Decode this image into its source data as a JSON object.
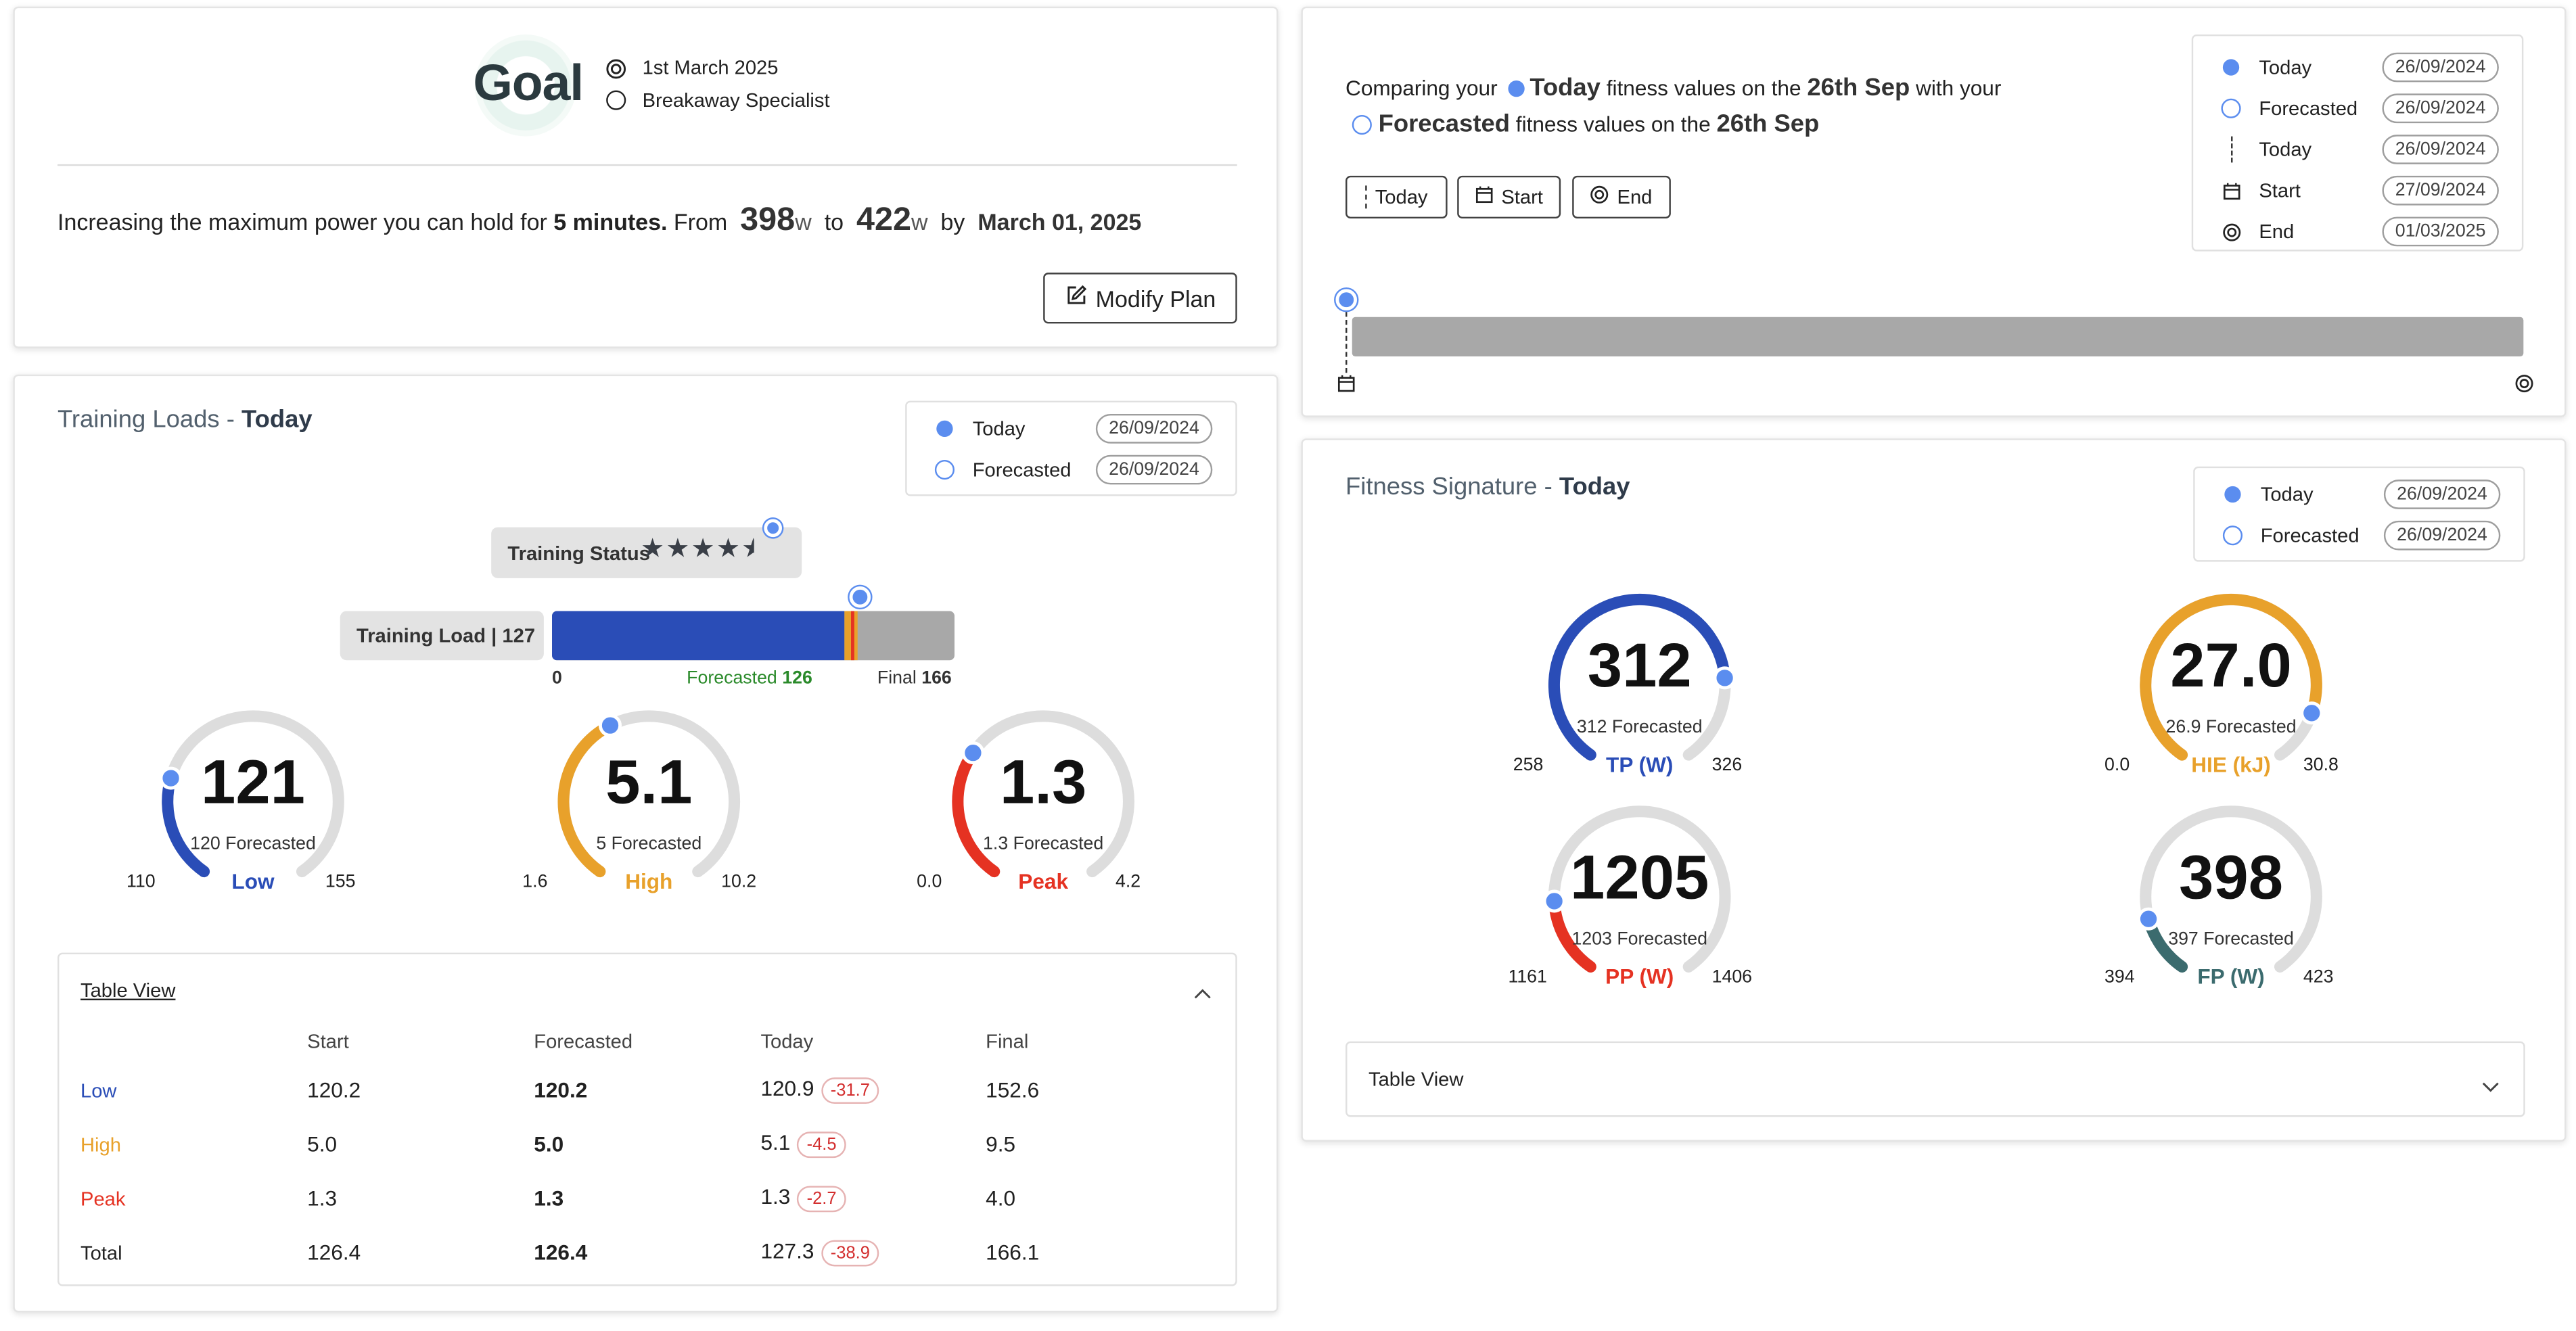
{
  "colors": {
    "low": "#2a4db7",
    "high": "#e8a12b",
    "peak": "#e53222",
    "fp": "#3b6b6e",
    "marker": "#5b8def",
    "track": "#dddddd",
    "forecast": "#2a8a2a"
  },
  "goal": {
    "label": "Goal",
    "date": "1st March 2025",
    "profile": "Breakaway Specialist",
    "desc_prefix": "Increasing the maximum power you can hold for",
    "duration": "5 minutes.",
    "from_label": "From",
    "from_value": "398",
    "from_unit": "w",
    "to_label": "to",
    "to_value": "422",
    "to_unit": "w",
    "by_label": "by",
    "by_date": "March 01, 2025",
    "modify_button": "Modify Plan"
  },
  "timeline": {
    "text1": "Comparing your",
    "today_label": "Today",
    "text2": "fitness values on the",
    "date_bold": "26th Sep",
    "text3": "with your",
    "forecasted_label": "Forecasted",
    "text4": "fitness values on the",
    "date_bold2": "26th Sep",
    "buttons": [
      "Today",
      "Start",
      "End"
    ],
    "progress": 0.0,
    "legend": [
      {
        "icon": "dot",
        "label": "Today",
        "date": "26/09/2024"
      },
      {
        "icon": "ring",
        "label": "Forecasted",
        "date": "26/09/2024"
      },
      {
        "icon": "dash",
        "label": "Today",
        "date": "26/09/2024"
      },
      {
        "icon": "calendar",
        "label": "Start",
        "date": "27/09/2024"
      },
      {
        "icon": "target",
        "label": "End",
        "date": "01/03/2025"
      }
    ]
  },
  "training": {
    "title": "Training Loads - ",
    "title_bold": "Today",
    "legend": [
      {
        "label": "Today",
        "date": "26/09/2024"
      },
      {
        "label": "Forecasted",
        "date": "26/09/2024"
      }
    ],
    "status_label": "Training Status",
    "stars": 4.5,
    "load_label": "Training Load | 127",
    "load": {
      "min": 0,
      "max": 166,
      "today": 127,
      "forecasted": 126
    },
    "load_min_label": "0",
    "forecasted_text": "Forecasted",
    "forecasted_value": "126",
    "final_text": "Final",
    "final_value": "166",
    "gauges": [
      {
        "value": "121",
        "sub": "120 Forecasted",
        "min": "110",
        "max": "155",
        "name": "Low",
        "color": "low",
        "v": 121,
        "lo": 110,
        "hi": 155
      },
      {
        "value": "5.1",
        "sub": "5 Forecasted",
        "min": "1.6",
        "max": "10.2",
        "name": "High",
        "color": "high",
        "v": 5.1,
        "lo": 1.6,
        "hi": 10.2
      },
      {
        "value": "1.3",
        "sub": "1.3 Forecasted",
        "min": "0.0",
        "max": "4.2",
        "name": "Peak",
        "color": "peak",
        "v": 1.3,
        "lo": 0,
        "hi": 4.2
      }
    ],
    "table": {
      "title": "Table View",
      "headers": [
        "",
        "Start",
        "Forecasted",
        "Today",
        "Final"
      ],
      "rows": [
        {
          "name": "Low",
          "start": "120.2",
          "forecasted": "120.2",
          "today": "120.9",
          "delta": "-31.7",
          "final": "152.6"
        },
        {
          "name": "High",
          "start": "5.0",
          "forecasted": "5.0",
          "today": "5.1",
          "delta": "-4.5",
          "final": "9.5"
        },
        {
          "name": "Peak",
          "start": "1.3",
          "forecasted": "1.3",
          "today": "1.3",
          "delta": "-2.7",
          "final": "4.0"
        },
        {
          "name": "Total",
          "start": "126.4",
          "forecasted": "126.4",
          "today": "127.3",
          "delta": "-38.9",
          "final": "166.1"
        }
      ]
    }
  },
  "fitness": {
    "title": "Fitness Signature - ",
    "title_bold": "Today",
    "legend": [
      {
        "label": "Today",
        "date": "26/09/2024"
      },
      {
        "label": "Forecasted",
        "date": "26/09/2024"
      }
    ],
    "gauges": [
      {
        "value": "312",
        "sub": "312 Forecasted",
        "min": "258",
        "max": "326",
        "name": "TP (W)",
        "color": "low",
        "v": 312,
        "lo": 258,
        "hi": 326
      },
      {
        "value": "27.0",
        "sub": "26.9 Forecasted",
        "min": "0.0",
        "max": "30.8",
        "name": "HIE (kJ)",
        "color": "high",
        "v": 27.0,
        "lo": 0,
        "hi": 30.8
      },
      {
        "value": "1205",
        "sub": "1203 Forecasted",
        "min": "1161",
        "max": "1406",
        "name": "PP (W)",
        "color": "peak",
        "v": 1205,
        "lo": 1161,
        "hi": 1406
      },
      {
        "value": "398",
        "sub": "397 Forecasted",
        "min": "394",
        "max": "423",
        "name": "FP (W)",
        "color": "fp",
        "v": 398,
        "lo": 394,
        "hi": 423
      }
    ],
    "table_title": "Table View"
  }
}
